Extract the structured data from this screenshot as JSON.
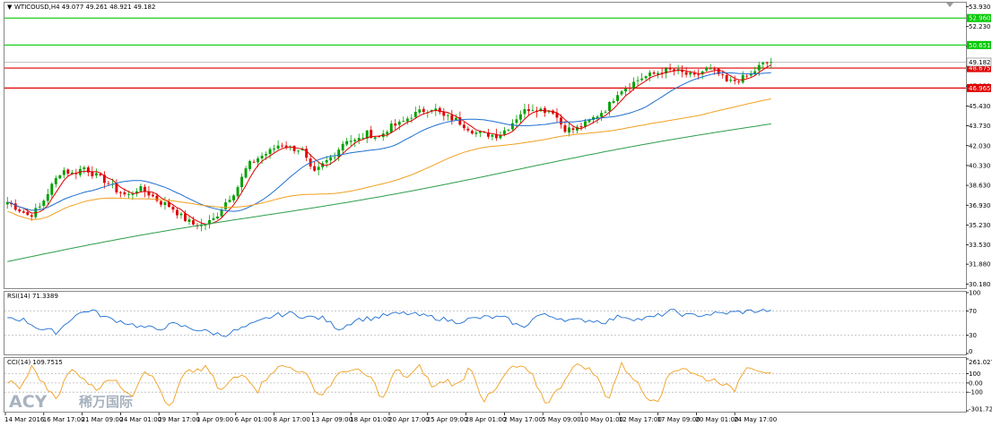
{
  "header": {
    "symbol_line": "WTICOUSD,H4  49.077 49.261 48.921 49.182"
  },
  "price_panel": {
    "y_axis": [
      "53.930",
      "52.230",
      "50.530",
      "48.830",
      "47.130",
      "45.430",
      "43.730",
      "42.030",
      "40.330",
      "38.630",
      "36.930",
      "35.230",
      "33.530",
      "31.880",
      "30.180"
    ],
    "hlines": [
      {
        "label": "52.960",
        "value": 52.96,
        "color": "#00c800"
      },
      {
        "label": "50.651",
        "value": 50.651,
        "color": "#00c800"
      },
      {
        "label": "48.675",
        "value": 48.675,
        "color": "#e00000"
      },
      {
        "label": "46.965",
        "value": 46.965,
        "color": "#e00000"
      }
    ],
    "current_price": {
      "label": "49.182",
      "value": 49.182
    },
    "ylim": [
      29.9,
      54.2
    ]
  },
  "rsi_panel": {
    "title": "RSI(14) 71.3389",
    "levels": [
      "100",
      "70",
      "30",
      "0"
    ],
    "color": "#1e6fd0"
  },
  "cci_panel": {
    "title": "CCI(14) 109.7515",
    "levels": [
      "261.0273",
      "100",
      "0.00",
      "-100",
      "-301.726"
    ],
    "color": "#f0a020"
  },
  "x_axis": [
    "14 Mar 2016",
    "16 Mar 17:00",
    "21 Mar 09:00",
    "24 Mar 01:00",
    "29 Mar 17:00",
    "1 Apr 09:00",
    "6 Apr 01:00",
    "8 Apr 17:00",
    "13 Apr 09:00",
    "18 Apr 01:00",
    "20 Apr 17:00",
    "25 Apr 09:00",
    "28 Apr 01:00",
    "2 May 17:00",
    "5 May 09:00",
    "10 May 01:00",
    "12 May 17:00",
    "17 May 09:00",
    "20 May 01:00",
    "24 May 17:00"
  ],
  "chart_data": {
    "type": "candlestick",
    "instrument": "WTICOUSD",
    "timeframe": "H4",
    "ohlc_last": {
      "open": 49.077,
      "high": 49.261,
      "low": 48.921,
      "close": 49.182
    },
    "close_anchors": [
      37.2,
      36.6,
      36.0,
      36.8,
      38.5,
      40.0,
      39.6,
      40.2,
      39.5,
      39.0,
      38.2,
      37.7,
      38.4,
      37.9,
      37.2,
      36.8,
      35.9,
      35.3,
      35.2,
      35.8,
      37.2,
      38.3,
      40.3,
      41.0,
      41.5,
      42.2,
      41.8,
      41.7,
      39.5,
      40.5,
      41.3,
      42.6,
      42.4,
      43.1,
      42.7,
      43.6,
      43.9,
      44.6,
      45.0,
      45.3,
      44.5,
      44.3,
      43.7,
      43.1,
      43.0,
      42.9,
      43.7,
      44.8,
      45.3,
      45.1,
      45.0,
      43.5,
      43.4,
      43.9,
      44.6,
      45.3,
      46.7,
      47.2,
      47.8,
      48.1,
      48.4,
      48.5,
      48.2,
      47.9,
      48.6,
      48.3,
      47.4,
      47.7,
      48.0,
      48.9,
      49.2
    ],
    "colors": {
      "up": "#00a000",
      "down": "#e00000",
      "ma_fast": "#e00000",
      "ma_mid": "#1e6fd0",
      "ma_slow": "#f0a020",
      "ma_long": "#2e9e4a"
    },
    "series": [
      {
        "type": "rsi",
        "close_anchors": [
          60,
          55,
          40,
          35,
          62,
          72,
          58,
          52,
          44,
          40,
          48,
          42,
          36,
          30,
          40,
          50,
          62,
          66,
          60,
          58,
          40,
          56,
          58,
          64,
          66,
          62,
          58,
          52,
          57,
          60,
          58,
          42,
          64,
          60,
          54,
          55,
          52,
          62,
          56,
          60,
          70,
          62,
          64,
          66,
          68,
          70,
          71
        ]
      },
      {
        "type": "cci",
        "close_anchors": [
          20,
          -60,
          180,
          -40,
          -150,
          140,
          80,
          -80,
          60,
          -30,
          -120,
          160,
          -20,
          -301,
          80,
          140,
          160,
          -100,
          40,
          100,
          -80,
          120,
          180,
          160,
          60,
          -150,
          20,
          150,
          120,
          60,
          -180,
          140,
          60,
          180,
          -60,
          40,
          -40,
          200,
          -200,
          -80,
          140,
          180,
          60,
          -220,
          -80,
          160,
          200,
          80,
          -180,
          200,
          60,
          -150,
          -170,
          120,
          180,
          80,
          40,
          20,
          -100,
          200,
          150,
          110
        ]
      }
    ]
  },
  "branding": {
    "logo_latin": "ACY",
    "logo_cjk": "稀万国际"
  }
}
